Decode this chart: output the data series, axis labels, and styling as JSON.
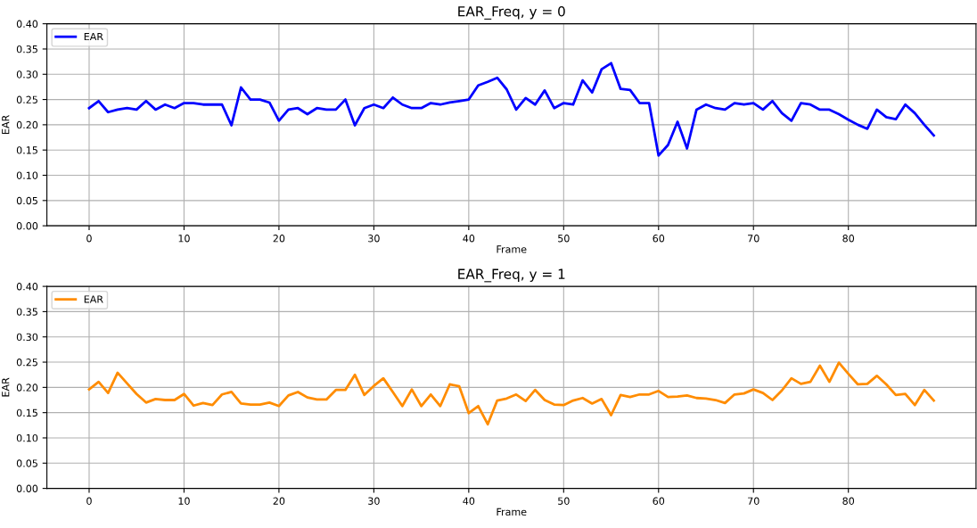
{
  "chart_data": [
    {
      "type": "line",
      "title": "EAR_Freq, y = 0",
      "xlabel": "Frame",
      "ylabel": "EAR",
      "x": [
        0,
        1,
        2,
        3,
        4,
        5,
        6,
        7,
        8,
        9,
        10,
        11,
        12,
        13,
        14,
        15,
        16,
        17,
        18,
        19,
        20,
        21,
        22,
        23,
        24,
        25,
        26,
        27,
        28,
        29,
        30,
        31,
        32,
        33,
        34,
        35,
        36,
        37,
        38,
        39,
        40,
        41,
        42,
        43,
        44,
        45,
        46,
        47,
        48,
        49,
        50,
        51,
        52,
        53,
        54,
        55,
        56,
        57,
        58,
        59,
        60,
        61,
        62,
        63,
        64,
        65,
        66,
        67,
        68,
        69,
        70,
        71,
        72,
        73,
        74,
        75,
        76,
        77,
        78,
        79,
        80,
        81,
        82,
        83,
        84,
        85,
        86,
        87,
        88,
        89
      ],
      "series": [
        {
          "name": "EAR",
          "color": "#0000ff",
          "values": [
            0.233,
            0.247,
            0.225,
            0.23,
            0.233,
            0.23,
            0.247,
            0.23,
            0.24,
            0.233,
            0.243,
            0.243,
            0.24,
            0.24,
            0.24,
            0.199,
            0.274,
            0.25,
            0.25,
            0.244,
            0.208,
            0.23,
            0.233,
            0.221,
            0.233,
            0.23,
            0.23,
            0.25,
            0.199,
            0.233,
            0.24,
            0.233,
            0.254,
            0.24,
            0.233,
            0.233,
            0.243,
            0.24,
            0.244,
            0.247,
            0.25,
            0.278,
            0.285,
            0.293,
            0.27,
            0.23,
            0.253,
            0.24,
            0.268,
            0.233,
            0.243,
            0.24,
            0.288,
            0.264,
            0.31,
            0.322,
            0.271,
            0.269,
            0.243,
            0.243,
            0.139,
            0.16,
            0.206,
            0.153,
            0.23,
            0.24,
            0.233,
            0.23,
            0.243,
            0.24,
            0.243,
            0.23,
            0.247,
            0.223,
            0.208,
            0.243,
            0.24,
            0.23,
            0.23,
            0.221,
            0.21,
            0.2,
            0.192,
            0.23,
            0.215,
            0.211,
            0.24,
            0.223,
            0.2,
            0.179
          ]
        }
      ],
      "xlim": [
        -4.45,
        93.45
      ],
      "xticks": [
        0,
        10,
        20,
        30,
        40,
        50,
        60,
        70,
        80
      ],
      "ylim": [
        0,
        0.4
      ],
      "yticks": [
        {
          "value": 0,
          "label": "0.00"
        },
        {
          "value": 0.05,
          "label": "0.05"
        },
        {
          "value": 0.1,
          "label": "0.10"
        },
        {
          "value": 0.15,
          "label": "0.15"
        },
        {
          "value": 0.2,
          "label": "0.20"
        },
        {
          "value": 0.25,
          "label": "0.25"
        },
        {
          "value": 0.3,
          "label": "0.30"
        },
        {
          "value": 0.35,
          "label": "0.35"
        },
        {
          "value": 0.4,
          "label": "0.40"
        }
      ],
      "grid": true,
      "legend": "top left",
      "marker": "none",
      "line_style": "solid"
    },
    {
      "type": "line",
      "title": "EAR_Freq, y = 1",
      "xlabel": "Frame",
      "ylabel": "EAR",
      "x": [
        0,
        1,
        2,
        3,
        4,
        5,
        6,
        7,
        8,
        9,
        10,
        11,
        12,
        13,
        14,
        15,
        16,
        17,
        18,
        19,
        20,
        21,
        22,
        23,
        24,
        25,
        26,
        27,
        28,
        29,
        30,
        31,
        32,
        33,
        34,
        35,
        36,
        37,
        38,
        39,
        40,
        41,
        42,
        43,
        44,
        45,
        46,
        47,
        48,
        49,
        50,
        51,
        52,
        53,
        54,
        55,
        56,
        57,
        58,
        59,
        60,
        61,
        62,
        63,
        64,
        65,
        66,
        67,
        68,
        69,
        70,
        71,
        72,
        73,
        74,
        75,
        76,
        77,
        78,
        79,
        80,
        81,
        82,
        83,
        84,
        85,
        86,
        87,
        88,
        89
      ],
      "series": [
        {
          "name": "EAR",
          "color": "#ff8c00",
          "values": [
            0.196,
            0.211,
            0.189,
            0.229,
            0.208,
            0.187,
            0.17,
            0.177,
            0.175,
            0.175,
            0.187,
            0.164,
            0.169,
            0.165,
            0.186,
            0.191,
            0.168,
            0.166,
            0.166,
            0.17,
            0.163,
            0.184,
            0.191,
            0.18,
            0.176,
            0.176,
            0.195,
            0.195,
            0.225,
            0.185,
            0.203,
            0.218,
            0.191,
            0.163,
            0.196,
            0.163,
            0.186,
            0.163,
            0.206,
            0.202,
            0.149,
            0.163,
            0.127,
            0.174,
            0.178,
            0.186,
            0.173,
            0.195,
            0.175,
            0.166,
            0.165,
            0.174,
            0.179,
            0.168,
            0.177,
            0.145,
            0.185,
            0.181,
            0.186,
            0.186,
            0.193,
            0.181,
            0.182,
            0.184,
            0.179,
            0.178,
            0.175,
            0.169,
            0.186,
            0.188,
            0.196,
            0.189,
            0.175,
            0.194,
            0.218,
            0.207,
            0.211,
            0.243,
            0.211,
            0.249,
            0.227,
            0.206,
            0.207,
            0.223,
            0.206,
            0.185,
            0.187,
            0.165,
            0.195,
            0.174
          ]
        }
      ],
      "xlim": [
        -4.45,
        93.45
      ],
      "xticks": [
        0,
        10,
        20,
        30,
        40,
        50,
        60,
        70,
        80
      ],
      "ylim": [
        0,
        0.4
      ],
      "yticks": [
        {
          "value": 0,
          "label": "0.00"
        },
        {
          "value": 0.05,
          "label": "0.05"
        },
        {
          "value": 0.1,
          "label": "0.10"
        },
        {
          "value": 0.15,
          "label": "0.15"
        },
        {
          "value": 0.2,
          "label": "0.20"
        },
        {
          "value": 0.25,
          "label": "0.25"
        },
        {
          "value": 0.3,
          "label": "0.30"
        },
        {
          "value": 0.35,
          "label": "0.35"
        },
        {
          "value": 0.4,
          "label": "0.40"
        }
      ],
      "grid": true,
      "legend": "top left",
      "marker": "none",
      "line_style": "solid"
    }
  ]
}
